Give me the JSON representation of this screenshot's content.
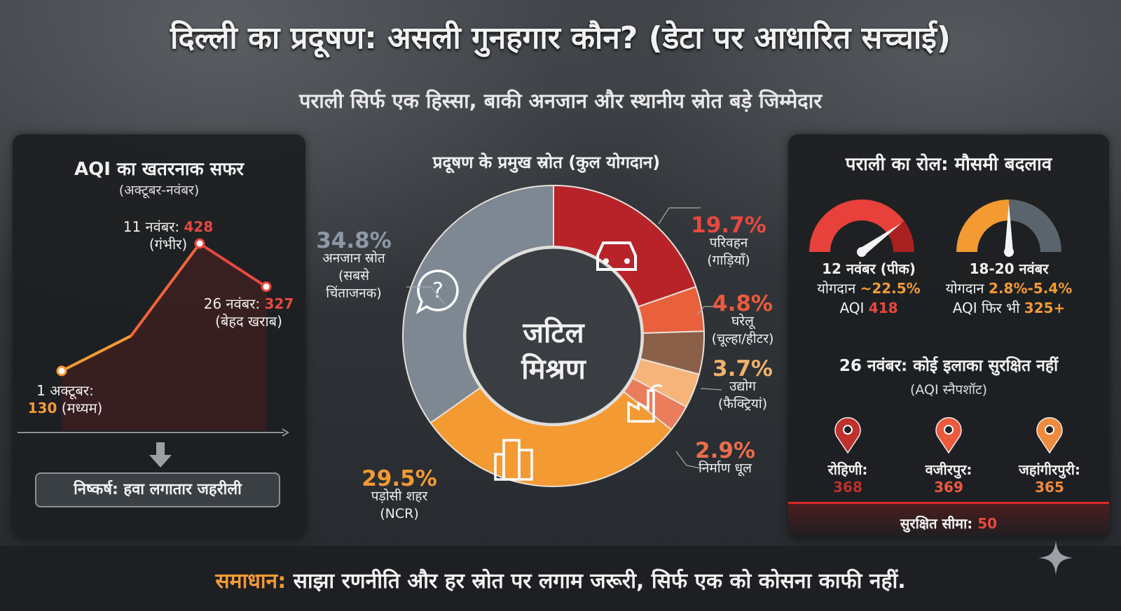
{
  "header": {
    "title": "दिल्ली का प्रदूषण: असली गुनहगार कौन? (डेटा पर आधारित सच्चाई)",
    "subtitle": "पराली सिर्फ एक हिस्सा, बाकी अनजान और स्थानीय स्रोत बड़े जिम्मेदार"
  },
  "left": {
    "title": "AQI का खतरनाक सफर",
    "subtitle": "(अक्टूबर-नवंबर)",
    "conclusion": "निष्कर्ष: हवा लगातार जहरीली",
    "arrow_icon": "arrow-down-icon"
  },
  "center": {
    "title": "प्रदूषण के प्रमुख स्रोत (कुल योगदान)",
    "center_label_1": "जटिल",
    "center_label_2": "मिश्रण"
  },
  "right": {
    "title": "पराली का रोल: मौसमी बदलाव",
    "gauges": [
      {
        "date": "12 नवंबर (पीक)",
        "contrib_label": "योगदान",
        "contrib_value": "~22.5%",
        "aqi_label": "AQI",
        "aqi_value": "418",
        "level": 0.8,
        "colors": [
          "#e8403a",
          "#a8201f"
        ]
      },
      {
        "date": "18-20 नवंबर",
        "contrib_label": "योगदान",
        "contrib_value": "2.8%-5.4%",
        "aqi_label": "AQI फिर भी",
        "aqi_value": "325+",
        "level": 0.5,
        "colors": [
          "#f39a33",
          "#5a646c"
        ]
      }
    ],
    "snapshot_title": "26 नवंबर: कोई इलाका सुरक्षित नहीं",
    "snapshot_subtitle": "(AQI स्नैपशॉट)",
    "locations": [
      {
        "name": "रोहिणी:",
        "aqi": "368",
        "color": "#c0302c"
      },
      {
        "name": "वजीरपुर:",
        "aqi": "369",
        "color": "#ec5a3c"
      },
      {
        "name": "जहांगीरपुरी:",
        "aqi": "365",
        "color": "#f08a3c"
      }
    ],
    "safe_label": "सुरक्षित सीमा:",
    "safe_value": "50"
  },
  "footer": {
    "lead": "समाधान:",
    "text": " साझा रणनीति और हर स्रोत पर लगाम जरूरी, सिर्फ एक को कोसना काफी नहीं."
  },
  "chart_data": [
    {
      "type": "line",
      "title": "AQI का खतरनाक सफर",
      "subtitle": "(अक्टूबर-नवंबर)",
      "points": [
        {
          "date": "1 अक्टूबर:",
          "value": 130,
          "value_label": "130",
          "category": "(मध्यम)",
          "color": "#f39a33"
        },
        {
          "date": "",
          "value": 212,
          "value_label": "",
          "category": "",
          "color": "#f39a33"
        },
        {
          "date": "11 नवंबर:",
          "value": 428,
          "value_label": "428",
          "category": "(गंभीर)",
          "color": "#e8483f"
        },
        {
          "date": "26 नवंबर:",
          "value": 327,
          "value_label": "327",
          "category": "(बेहद खराब)",
          "color": "#e8483f"
        }
      ],
      "ylim": [
        0,
        500
      ]
    },
    {
      "type": "pie",
      "title": "प्रदूषण के प्रमुख स्रोत (कुल योगदान)",
      "donut": true,
      "slices": [
        {
          "value": 19.7,
          "label": "19.7%",
          "name": "परिवहन",
          "note": "(गाड़ियाँ)",
          "color": "#b8232a",
          "icon": "car-icon"
        },
        {
          "value": 4.8,
          "label": "4.8%",
          "name": "घरेलू",
          "note": "(चूल्हा/हीटर)",
          "color": "#e8603c"
        },
        {
          "value": 3.7,
          "label": "3.7%",
          "name": "उद्योग",
          "note": "(फैक्ट्रियां)",
          "color": "#f6b47a"
        },
        {
          "value": 2.9,
          "label": "2.9%",
          "name": "निर्माण धूल",
          "note": "",
          "color": "#ea7d5c",
          "icon": "factory-icon"
        },
        {
          "value": 29.5,
          "label": "29.5%",
          "name": "पड़ोसी शहर",
          "note": "(NCR)",
          "color": "#f39a33",
          "icon": "buildings-icon"
        },
        {
          "value": 34.8,
          "label": "34.8%",
          "name": "अनजान स्रोत",
          "note": "(सबसे चिंताजनक)",
          "color": "#7d8893",
          "icon": "question-bubble-icon"
        }
      ],
      "label_colors": {
        "19.7%": "#e8483f",
        "4.8%": "#ec5a3c",
        "3.7%": "#f2b26a",
        "2.9%": "#ec6d4c",
        "29.5%": "#f39a33",
        "34.8%": "#8d99a6"
      }
    }
  ]
}
